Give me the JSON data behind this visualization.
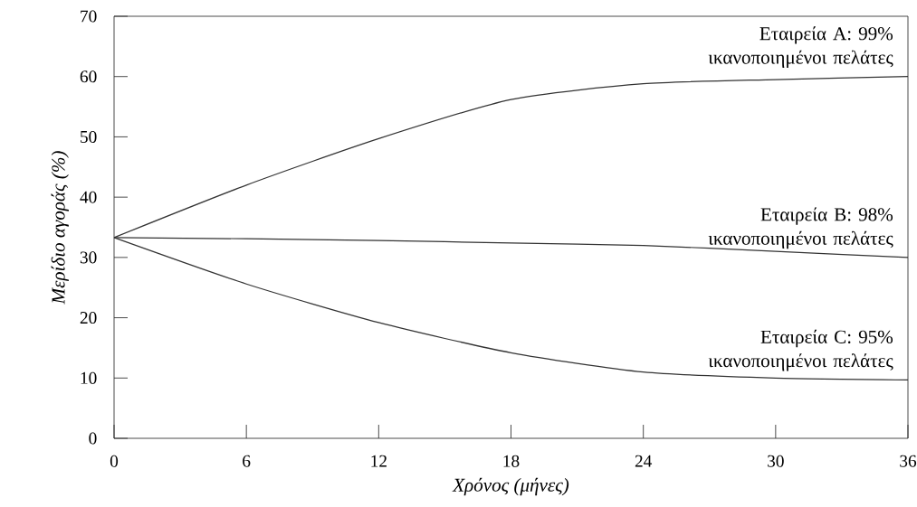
{
  "chart_data": {
    "type": "line",
    "xlabel": "Χρόνος (μήνες)",
    "ylabel": "Μερίδιο αγοράς (%)",
    "x": [
      0,
      6,
      12,
      18,
      24,
      30,
      36
    ],
    "series": [
      {
        "name": "Εταιρεία A: 99% ικανοποιημένοι πελάτες",
        "color": "#333333",
        "values": [
          33.3,
          42,
          49.7,
          56.2,
          58.8,
          59.5,
          60
        ]
      },
      {
        "name": "Εταιρεία B: 98% ικανοποιημένοι πελάτες",
        "color": "#333333",
        "values": [
          33.3,
          33.1,
          32.8,
          32.4,
          32,
          31,
          30
        ]
      },
      {
        "name": "Εταιρεία C: 95% ικανοποιημένοι πελάτες",
        "color": "#333333",
        "values": [
          33.3,
          25.6,
          19.2,
          14.2,
          11,
          10,
          9.7
        ]
      }
    ],
    "xlim": [
      0,
      36
    ],
    "ylim": [
      0,
      70
    ],
    "xticks": [
      0,
      6,
      12,
      18,
      24,
      30,
      36
    ],
    "yticks": [
      0,
      10,
      20,
      30,
      40,
      50,
      60,
      70
    ],
    "grid": false,
    "legend": false,
    "marker": "none",
    "line_style": "solid"
  }
}
